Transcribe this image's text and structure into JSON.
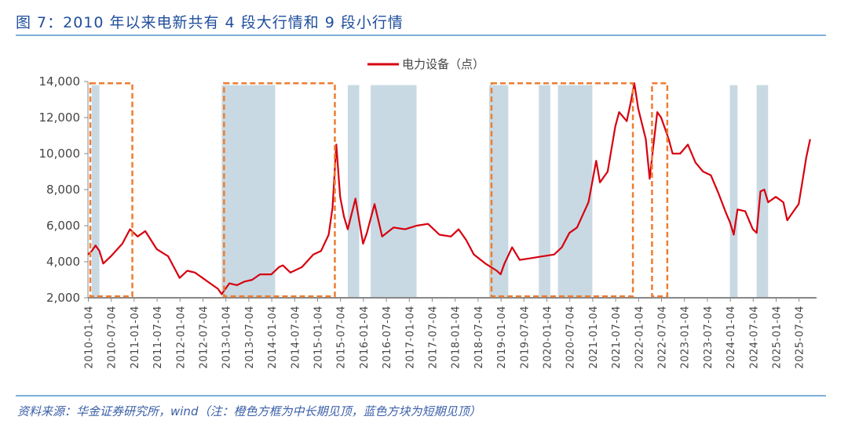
{
  "title": "图 7：2010 年以来电新共有 4 段大行情和 9 段小行情",
  "source": "资料来源：华金证券研究所，wind（注：橙色方框为中长期见顶，蓝色方块为短期见顶）",
  "colors": {
    "line": "#d7000f",
    "orange_box": "#ed7d31",
    "blue_block": "#c8d9e3",
    "title": "#1f4e9c"
  },
  "chart_data": {
    "type": "line",
    "legend": {
      "label": "电力设备（点）",
      "position": "top"
    },
    "ylim": [
      2000,
      14000
    ],
    "yticks": [
      "2,000",
      "4,000",
      "6,000",
      "8,000",
      "10,000",
      "12,000",
      "14,000"
    ],
    "ytick_values": [
      2000,
      4000,
      6000,
      8000,
      10000,
      12000,
      14000
    ],
    "xticks": [
      "2010-01-04",
      "2010-07-04",
      "2011-01-04",
      "2011-07-04",
      "2012-01-04",
      "2012-07-04",
      "2013-01-04",
      "2013-07-04",
      "2014-01-04",
      "2014-07-04",
      "2015-01-04",
      "2015-07-04",
      "2016-01-04",
      "2016-07-04",
      "2017-01-04",
      "2017-07-04",
      "2018-01-04",
      "2018-07-04",
      "2019-01-04",
      "2019-07-04",
      "2020-01-04",
      "2020-07-04",
      "2021-01-04",
      "2021-07-04",
      "2022-01-04",
      "2022-07-04",
      "2023-01-04",
      "2023-07-04",
      "2024-01-04",
      "2024-07-04",
      "2025-01-04",
      "2025-07-04"
    ],
    "grid": false,
    "series": [
      {
        "name": "电力设备（点）",
        "points": [
          [
            "2010-01",
            4400
          ],
          [
            "2010-02",
            4600
          ],
          [
            "2010-03",
            4900
          ],
          [
            "2010-04",
            4600
          ],
          [
            "2010-05",
            3900
          ],
          [
            "2010-07",
            4300
          ],
          [
            "2010-10",
            5000
          ],
          [
            "2010-12",
            5800
          ],
          [
            "2011-02",
            5400
          ],
          [
            "2011-04",
            5700
          ],
          [
            "2011-07",
            4700
          ],
          [
            "2011-10",
            4300
          ],
          [
            "2011-12",
            3500
          ],
          [
            "2012-01",
            3100
          ],
          [
            "2012-03",
            3500
          ],
          [
            "2012-05",
            3400
          ],
          [
            "2012-07",
            3100
          ],
          [
            "2012-09",
            2800
          ],
          [
            "2012-11",
            2500
          ],
          [
            "2012-12",
            2200
          ],
          [
            "2013-02",
            2800
          ],
          [
            "2013-04",
            2700
          ],
          [
            "2013-06",
            2900
          ],
          [
            "2013-08",
            3000
          ],
          [
            "2013-10",
            3300
          ],
          [
            "2014-01",
            3300
          ],
          [
            "2014-03",
            3700
          ],
          [
            "2014-04",
            3800
          ],
          [
            "2014-06",
            3400
          ],
          [
            "2014-09",
            3700
          ],
          [
            "2014-12",
            4400
          ],
          [
            "2015-02",
            4600
          ],
          [
            "2015-04",
            5500
          ],
          [
            "2015-05",
            7000
          ],
          [
            "2015-06",
            10500
          ],
          [
            "2015-07",
            7600
          ],
          [
            "2015-08",
            6500
          ],
          [
            "2015-09",
            5800
          ],
          [
            "2015-11",
            7500
          ],
          [
            "2016-01",
            5000
          ],
          [
            "2016-02",
            5600
          ],
          [
            "2016-04",
            7200
          ],
          [
            "2016-06",
            5400
          ],
          [
            "2016-09",
            5900
          ],
          [
            "2016-12",
            5800
          ],
          [
            "2017-03",
            6000
          ],
          [
            "2017-06",
            6100
          ],
          [
            "2017-09",
            5500
          ],
          [
            "2017-12",
            5400
          ],
          [
            "2018-02",
            5800
          ],
          [
            "2018-04",
            5200
          ],
          [
            "2018-06",
            4400
          ],
          [
            "2018-09",
            3900
          ],
          [
            "2018-12",
            3500
          ],
          [
            "2019-01",
            3300
          ],
          [
            "2019-02",
            3900
          ],
          [
            "2019-04",
            4800
          ],
          [
            "2019-06",
            4100
          ],
          [
            "2019-09",
            4200
          ],
          [
            "2019-12",
            4300
          ],
          [
            "2020-03",
            4400
          ],
          [
            "2020-05",
            4800
          ],
          [
            "2020-07",
            5600
          ],
          [
            "2020-09",
            5900
          ],
          [
            "2020-12",
            7300
          ],
          [
            "2021-02",
            9600
          ],
          [
            "2021-03",
            8400
          ],
          [
            "2021-05",
            9000
          ],
          [
            "2021-07",
            11500
          ],
          [
            "2021-08",
            12300
          ],
          [
            "2021-10",
            11800
          ],
          [
            "2021-11",
            12800
          ],
          [
            "2021-12",
            13900
          ],
          [
            "2022-01",
            12500
          ],
          [
            "2022-03",
            10800
          ],
          [
            "2022-04",
            8600
          ],
          [
            "2022-05",
            10500
          ],
          [
            "2022-06",
            12300
          ],
          [
            "2022-07",
            12000
          ],
          [
            "2022-09",
            10800
          ],
          [
            "2022-10",
            10000
          ],
          [
            "2022-12",
            10000
          ],
          [
            "2023-02",
            10500
          ],
          [
            "2023-04",
            9500
          ],
          [
            "2023-06",
            9000
          ],
          [
            "2023-08",
            8800
          ],
          [
            "2023-10",
            7800
          ],
          [
            "2023-12",
            6700
          ],
          [
            "2024-01",
            6200
          ],
          [
            "2024-02",
            5500
          ],
          [
            "2024-03",
            6900
          ],
          [
            "2024-05",
            6800
          ],
          [
            "2024-07",
            5800
          ],
          [
            "2024-08",
            5600
          ],
          [
            "2024-09",
            7900
          ],
          [
            "2024-10",
            8000
          ],
          [
            "2024-11",
            7300
          ],
          [
            "2025-01",
            7600
          ],
          [
            "2025-03",
            7300
          ],
          [
            "2025-04",
            6300
          ],
          [
            "2025-06",
            6900
          ],
          [
            "2025-07",
            7200
          ],
          [
            "2025-08",
            8500
          ],
          [
            "2025-09",
            9800
          ],
          [
            "2025-10",
            10800
          ]
        ]
      }
    ],
    "orange_boxes": [
      [
        "2010-01",
        "2010-12"
      ],
      [
        "2012-12",
        "2015-05"
      ],
      [
        "2018-10",
        "2021-11"
      ],
      [
        "2022-04",
        "2022-08"
      ]
    ],
    "blue_blocks": [
      [
        "2010-02",
        "2010-04"
      ],
      [
        "2012-12",
        "2014-02"
      ],
      [
        "2015-09",
        "2015-12"
      ],
      [
        "2016-03",
        "2017-03"
      ],
      [
        "2018-10",
        "2019-03"
      ],
      [
        "2019-11",
        "2020-02"
      ],
      [
        "2020-04",
        "2021-01"
      ],
      [
        "2024-01",
        "2024-03"
      ],
      [
        "2024-08",
        "2024-11"
      ]
    ]
  }
}
